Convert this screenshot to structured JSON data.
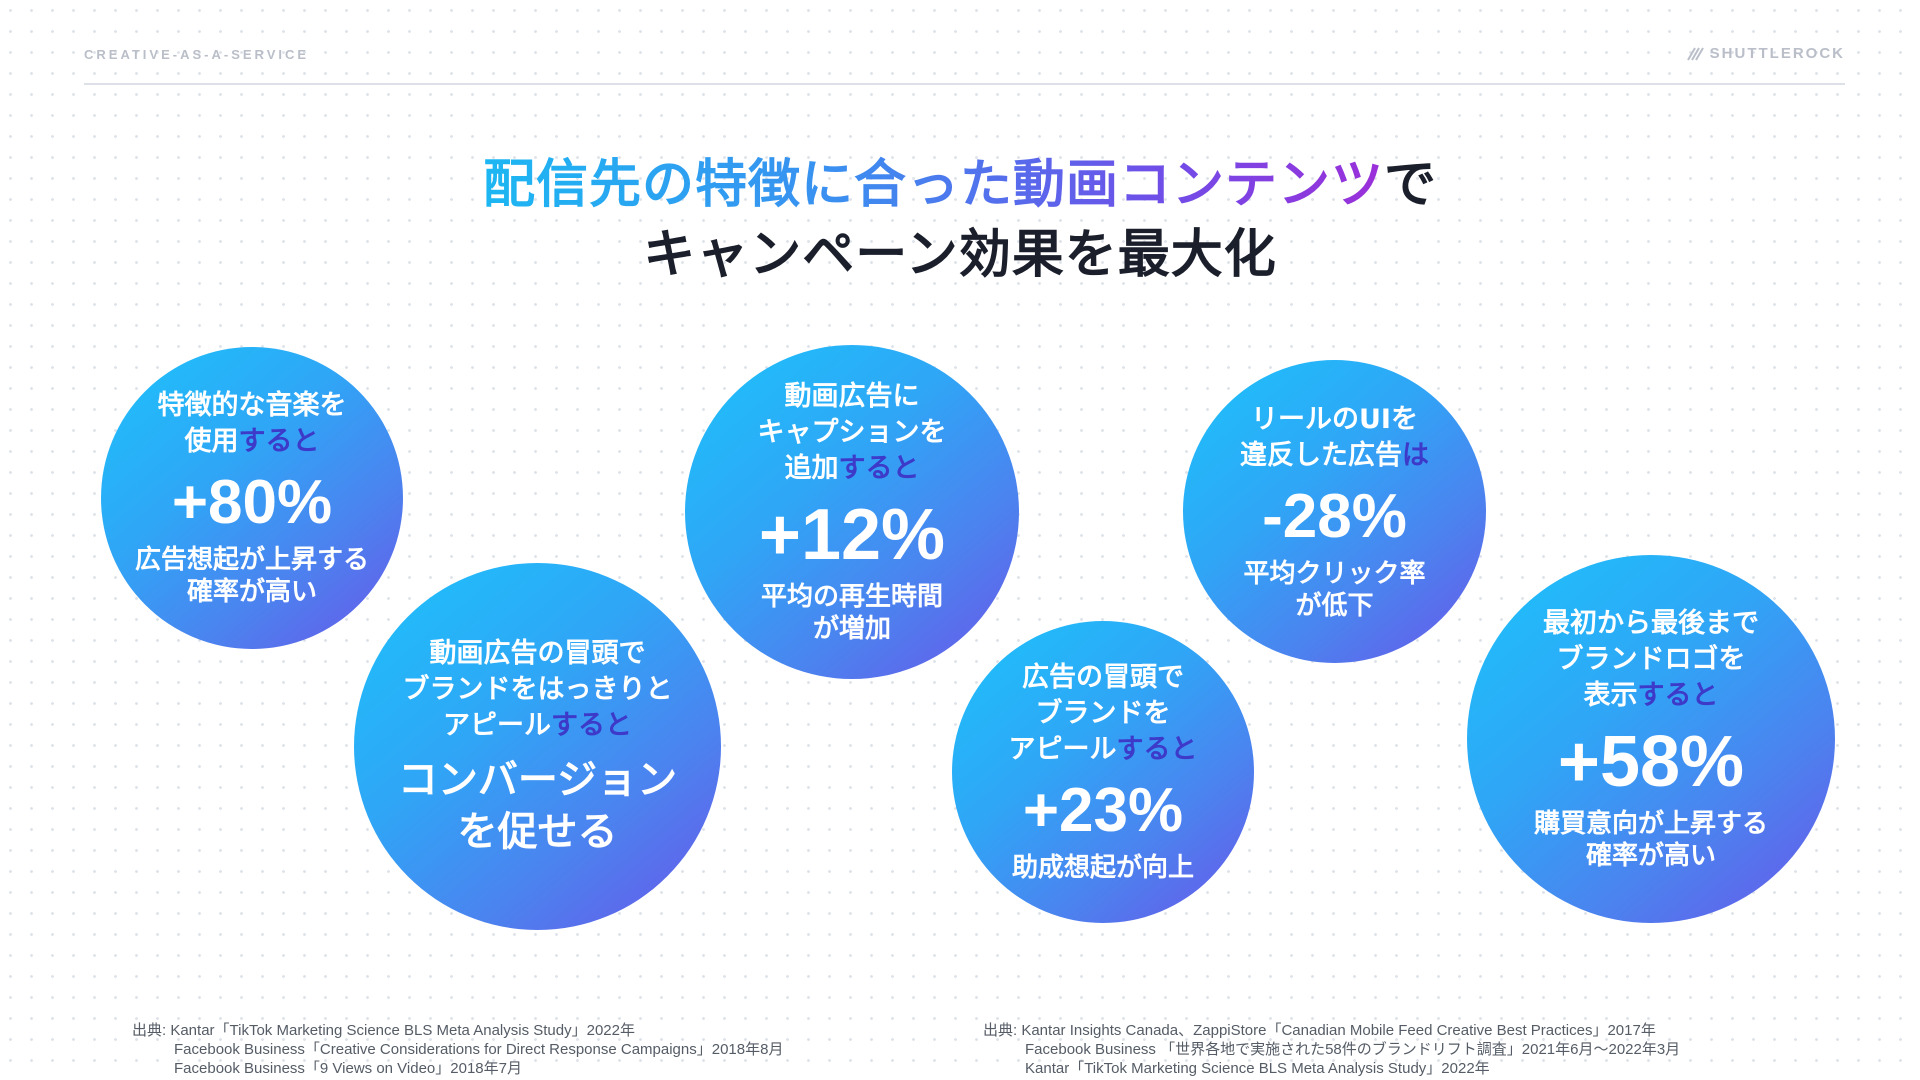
{
  "header": {
    "left": "CREATIVE-AS-A-SERVICE",
    "right": "SHUTTLEROCK"
  },
  "title": {
    "line1_gradient": "配信先の特徴に合った動画コンテンツ",
    "line1_suffix": "で",
    "line2": "キャンペーン効果を最大化"
  },
  "bubbles": [
    {
      "top1": "特徴的な音楽を",
      "top2": "使用",
      "top2_hl": "すると",
      "stat": "+80%",
      "bottom1": "広告想起が上昇する",
      "bottom2": "確率が高い"
    },
    {
      "top1": "動画広告の冒頭で",
      "top2": "ブランドをはっきりと",
      "top3": "アピール",
      "top3_hl": "すると",
      "bottom1": "コンバージョン",
      "bottom2": "を促せる"
    },
    {
      "top1": "動画広告に",
      "top2": "キャプションを",
      "top3": "追加",
      "top3_hl": "すると",
      "stat": "+12%",
      "bottom1": "平均の再生時間",
      "bottom2": "が増加"
    },
    {
      "top1": "広告の冒頭で",
      "top2": "ブランドを",
      "top3": "アピール",
      "top3_hl": "すると",
      "stat": "+23%",
      "bottom1": "助成想起が向上"
    },
    {
      "top1": "リールのUIを",
      "top2": "違反した広告",
      "top2_hl": "は",
      "stat": "-28%",
      "bottom1": "平均クリック率",
      "bottom2": "が低下"
    },
    {
      "top1": "最初から最後まで",
      "top2": "ブランドロゴを",
      "top3": "表示",
      "top3_hl": "すると",
      "stat": "+58%",
      "bottom1": "購買意向が上昇する",
      "bottom2": "確率が高い"
    }
  ],
  "sources_left": [
    "出典: Kantar「TikTok Marketing Science BLS Meta Analysis Study」2022年",
    "Facebook Business「Creative Considerations for Direct Response Campaigns」2018年8月",
    "Facebook Business「9 Views on Video」2018年7月"
  ],
  "sources_right": [
    "出典: Kantar Insights Canada、ZappiStore「Canadian Mobile Feed Creative Best Practices」2017年",
    "Facebook Business 「世界各地で実施された58件のブランドリフト調査」2021年6月〜2022年3月",
    "Kantar「TikTok Marketing Science BLS Meta Analysis Study」2022年"
  ]
}
